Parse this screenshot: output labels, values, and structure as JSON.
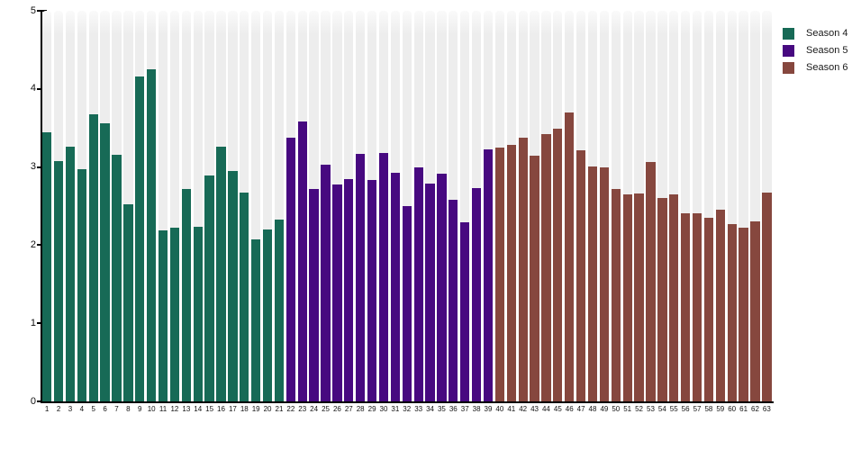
{
  "legend": {
    "items": [
      {
        "label": "Season 4",
        "color": "#176a56"
      },
      {
        "label": "Season 5",
        "color": "#470980"
      },
      {
        "label": "Season 6",
        "color": "#86473e"
      }
    ]
  },
  "chart_data": {
    "type": "bar",
    "title": "",
    "xlabel": "",
    "ylabel": "",
    "ylim": [
      0,
      5
    ],
    "yticks": [
      0,
      1,
      2,
      3,
      4,
      5
    ],
    "grid": false,
    "plot_background": "striped-columns",
    "stripe_color": "#ededed",
    "legend_position": "top-right",
    "series_ranges": [
      {
        "name": "Season 4",
        "color": "#176a56",
        "x_start": 1,
        "x_end": 21
      },
      {
        "name": "Season 5",
        "color": "#470980",
        "x_start": 22,
        "x_end": 39
      },
      {
        "name": "Season 6",
        "color": "#86473e",
        "x_start": 40,
        "x_end": 63
      }
    ],
    "bars": [
      {
        "x": 1,
        "value": 3.44,
        "series": "Season 4"
      },
      {
        "x": 2,
        "value": 3.08,
        "series": "Season 4"
      },
      {
        "x": 3,
        "value": 3.26,
        "series": "Season 4"
      },
      {
        "x": 4,
        "value": 2.97,
        "series": "Season 4"
      },
      {
        "x": 5,
        "value": 3.67,
        "series": "Season 4"
      },
      {
        "x": 6,
        "value": 3.56,
        "series": "Season 4"
      },
      {
        "x": 7,
        "value": 3.16,
        "series": "Season 4"
      },
      {
        "x": 8,
        "value": 2.52,
        "series": "Season 4"
      },
      {
        "x": 9,
        "value": 4.16,
        "series": "Season 4"
      },
      {
        "x": 10,
        "value": 4.25,
        "series": "Season 4"
      },
      {
        "x": 11,
        "value": 2.19,
        "series": "Season 4"
      },
      {
        "x": 12,
        "value": 2.22,
        "series": "Season 4"
      },
      {
        "x": 13,
        "value": 2.72,
        "series": "Season 4"
      },
      {
        "x": 14,
        "value": 2.24,
        "series": "Season 4"
      },
      {
        "x": 15,
        "value": 2.89,
        "series": "Season 4"
      },
      {
        "x": 16,
        "value": 3.26,
        "series": "Season 4"
      },
      {
        "x": 17,
        "value": 2.95,
        "series": "Season 4"
      },
      {
        "x": 18,
        "value": 2.67,
        "series": "Season 4"
      },
      {
        "x": 19,
        "value": 2.07,
        "series": "Season 4"
      },
      {
        "x": 20,
        "value": 2.2,
        "series": "Season 4"
      },
      {
        "x": 21,
        "value": 2.33,
        "series": "Season 4"
      },
      {
        "x": 22,
        "value": 3.37,
        "series": "Season 5"
      },
      {
        "x": 23,
        "value": 3.58,
        "series": "Season 5"
      },
      {
        "x": 24,
        "value": 2.72,
        "series": "Season 5"
      },
      {
        "x": 25,
        "value": 3.03,
        "series": "Season 5"
      },
      {
        "x": 26,
        "value": 2.78,
        "series": "Season 5"
      },
      {
        "x": 27,
        "value": 2.85,
        "series": "Season 5"
      },
      {
        "x": 28,
        "value": 3.17,
        "series": "Season 5"
      },
      {
        "x": 29,
        "value": 2.84,
        "series": "Season 5"
      },
      {
        "x": 30,
        "value": 3.18,
        "series": "Season 5"
      },
      {
        "x": 31,
        "value": 2.93,
        "series": "Season 5"
      },
      {
        "x": 32,
        "value": 2.5,
        "series": "Season 5"
      },
      {
        "x": 33,
        "value": 3.0,
        "series": "Season 5"
      },
      {
        "x": 34,
        "value": 2.79,
        "series": "Season 5"
      },
      {
        "x": 35,
        "value": 2.92,
        "series": "Season 5"
      },
      {
        "x": 36,
        "value": 2.58,
        "series": "Season 5"
      },
      {
        "x": 37,
        "value": 2.29,
        "series": "Season 5"
      },
      {
        "x": 38,
        "value": 2.73,
        "series": "Season 5"
      },
      {
        "x": 39,
        "value": 3.23,
        "series": "Season 5"
      },
      {
        "x": 40,
        "value": 3.25,
        "series": "Season 6"
      },
      {
        "x": 41,
        "value": 3.28,
        "series": "Season 6"
      },
      {
        "x": 42,
        "value": 3.37,
        "series": "Season 6"
      },
      {
        "x": 43,
        "value": 3.15,
        "series": "Season 6"
      },
      {
        "x": 44,
        "value": 3.42,
        "series": "Season 6"
      },
      {
        "x": 45,
        "value": 3.49,
        "series": "Season 6"
      },
      {
        "x": 46,
        "value": 3.7,
        "series": "Season 6"
      },
      {
        "x": 47,
        "value": 3.22,
        "series": "Season 6"
      },
      {
        "x": 48,
        "value": 3.01,
        "series": "Season 6"
      },
      {
        "x": 49,
        "value": 2.99,
        "series": "Season 6"
      },
      {
        "x": 50,
        "value": 2.72,
        "series": "Season 6"
      },
      {
        "x": 51,
        "value": 2.65,
        "series": "Season 6"
      },
      {
        "x": 52,
        "value": 2.66,
        "series": "Season 6"
      },
      {
        "x": 53,
        "value": 3.07,
        "series": "Season 6"
      },
      {
        "x": 54,
        "value": 2.6,
        "series": "Season 6"
      },
      {
        "x": 55,
        "value": 2.65,
        "series": "Season 6"
      },
      {
        "x": 56,
        "value": 2.41,
        "series": "Season 6"
      },
      {
        "x": 57,
        "value": 2.41,
        "series": "Season 6"
      },
      {
        "x": 58,
        "value": 2.35,
        "series": "Season 6"
      },
      {
        "x": 59,
        "value": 2.45,
        "series": "Season 6"
      },
      {
        "x": 60,
        "value": 2.27,
        "series": "Season 6"
      },
      {
        "x": 61,
        "value": 2.22,
        "series": "Season 6"
      },
      {
        "x": 62,
        "value": 2.3,
        "series": "Season 6"
      },
      {
        "x": 63,
        "value": 2.67,
        "series": "Season 6"
      }
    ]
  }
}
